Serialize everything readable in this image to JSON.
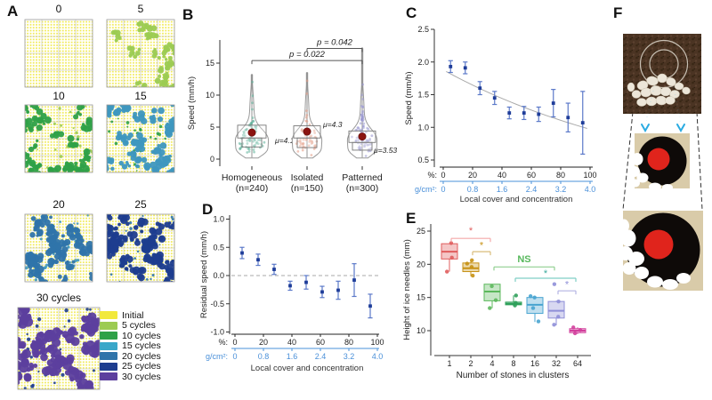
{
  "panel_labels": {
    "A": "A",
    "B": "B",
    "C": "C",
    "D": "D",
    "E": "E",
    "F": "F"
  },
  "panel_a": {
    "snapshot_titles": [
      "0",
      "5",
      "10",
      "15",
      "20",
      "25",
      "30 cycles"
    ],
    "snapshot_colors": [
      null,
      "#9ccb52",
      "#2fa148",
      "#3e97bf",
      "#2f74aa",
      "#1e3d8f",
      "#5c3f9e"
    ],
    "base_dot_color": "#f0e94b",
    "legend": [
      {
        "label": "Initial",
        "color": "#f2e93c"
      },
      {
        "label": "5 cycles",
        "color": "#9ccb52"
      },
      {
        "label": "10 cycles",
        "color": "#2fa148"
      },
      {
        "label": "15 cycles",
        "color": "#39a7c9"
      },
      {
        "label": "20 cycles",
        "color": "#2f74aa"
      },
      {
        "label": "25 cycles",
        "color": "#1e3d8f"
      },
      {
        "label": "30 cycles",
        "color": "#5c3f9e"
      }
    ]
  },
  "chart_data": [
    {
      "id": "B",
      "type": "violin",
      "ylabel": "Speed (mm/h)",
      "ylim": [
        0,
        18.5
      ],
      "yticks": [
        "0",
        "5",
        "10",
        "15"
      ],
      "ytick_vals": [
        0,
        5,
        10,
        15
      ],
      "categories": [
        {
          "label": "Homogeneous",
          "n": "(n=240)",
          "mu": 4.15,
          "mu_label": "μ=4.15",
          "color": "#5fb39a",
          "max": 13.3
        },
        {
          "label": "Isolated",
          "n": "(n=150)",
          "mu": 4.3,
          "mu_label": "μ=4.3",
          "color": "#e39a84",
          "max": 13.6
        },
        {
          "label": "Patterned",
          "n": "(n=300)",
          "mu": 3.53,
          "mu_label": "μ=3.53",
          "color": "#9a99d2",
          "max": 17.5
        }
      ],
      "comparisons": [
        {
          "from": 0,
          "to": 2,
          "label": "p = 0.022",
          "height": 15.4
        },
        {
          "from": 1,
          "to": 2,
          "label": "p = 0.042",
          "height": 17.3
        }
      ],
      "mean_dot_color": "#8b1410"
    },
    {
      "id": "C",
      "type": "scatter-errorbar",
      "ylabel": "Speed (mm/h)",
      "ylim": [
        0.5,
        2.5
      ],
      "yticks": [
        "0.5",
        "1.0",
        "1.5",
        "2.0",
        "2.5"
      ],
      "ytick_vals": [
        0.5,
        1.0,
        1.5,
        2.0,
        2.5
      ],
      "x": [
        5,
        15,
        25,
        35,
        45,
        55,
        65,
        75,
        85,
        95
      ],
      "y": [
        1.93,
        1.91,
        1.6,
        1.45,
        1.22,
        1.22,
        1.2,
        1.37,
        1.15,
        1.07
      ],
      "yerr": [
        0.09,
        0.09,
        0.1,
        0.1,
        0.09,
        0.1,
        0.11,
        0.21,
        0.22,
        0.48
      ],
      "trend": {
        "type": "exponential",
        "y0": 1.88,
        "y100": 0.97
      },
      "x_axis_rows": [
        {
          "prefix": "%:",
          "ticks": [
            "0",
            "20",
            "40",
            "60",
            "80",
            "100"
          ],
          "tick_vals": [
            0,
            20,
            40,
            60,
            80,
            100
          ],
          "color": "#222222"
        },
        {
          "prefix": "g/cm²:",
          "ticks": [
            "0",
            "0.8",
            "1.6",
            "2.4",
            "3.2",
            "4.0"
          ],
          "tick_vals": [
            0,
            20,
            40,
            60,
            80,
            100
          ],
          "color": "#4a90d9"
        }
      ],
      "xlabel": "Local cover and concentration",
      "point_color": "#1f3d99",
      "errorbar_color": "#5b79c9",
      "trend_color": "#aaaaaa"
    },
    {
      "id": "D",
      "type": "scatter-errorbar",
      "ylabel": "Residual speed (mm/h)",
      "ylim": [
        -1.0,
        1.0
      ],
      "yticks": [
        "-1.0",
        "-0.5",
        "0.0",
        "0.5",
        "1.0"
      ],
      "ytick_vals": [
        -1.0,
        -0.5,
        0.0,
        0.5,
        1.0
      ],
      "x": [
        5,
        16.25,
        27.5,
        38.75,
        50,
        61.25,
        72.5,
        83.75,
        95
      ],
      "y": [
        0.4,
        0.28,
        0.11,
        -0.18,
        -0.12,
        -0.29,
        -0.26,
        -0.08,
        -0.54
      ],
      "yerr": [
        0.1,
        0.1,
        0.09,
        0.08,
        0.12,
        0.1,
        0.16,
        0.29,
        0.21
      ],
      "zero_line": true,
      "x_axis_rows": [
        {
          "prefix": "%:",
          "ticks": [
            "0",
            "20",
            "40",
            "60",
            "80",
            "100"
          ],
          "tick_vals": [
            0,
            20,
            40,
            60,
            80,
            100
          ],
          "color": "#222222"
        },
        {
          "prefix": "g/cm²:",
          "ticks": [
            "0",
            "0.8",
            "1.6",
            "2.4",
            "3.2",
            "4.0"
          ],
          "tick_vals": [
            0,
            20,
            40,
            60,
            80,
            100
          ],
          "color": "#4a90d9"
        }
      ],
      "xlabel": "Local cover and concentration",
      "point_color": "#1f3d99",
      "errorbar_color": "#5b79c9",
      "trend_color": "#aaaaaa"
    },
    {
      "id": "E",
      "type": "box",
      "ylabel": "Height of ice needles (mm)",
      "xlabel": "Number of stones in clusters",
      "ylim": [
        8,
        26
      ],
      "yticks": [
        "10",
        "15",
        "20",
        "25"
      ],
      "ytick_vals": [
        10,
        15,
        20,
        25
      ],
      "boxes": [
        {
          "label": "1",
          "color": "#e05c5c",
          "whisker_low": 18.9,
          "q1": 20.8,
          "median": 21.9,
          "q3": 23.1,
          "whisker_high": 23.1,
          "points": [
            23.2,
            21.0,
            18.9
          ]
        },
        {
          "label": "2",
          "color": "#c79114",
          "whisker_low": 18.2,
          "q1": 18.9,
          "median": 19.4,
          "q3": 20.2,
          "whisker_high": 20.6,
          "points": [
            20.6,
            20.1,
            19.6,
            18.3
          ]
        },
        {
          "label": "4",
          "color": "#5cb85c",
          "whisker_low": 13.4,
          "q1": 14.5,
          "median": 15.9,
          "q3": 17.0,
          "whisker_high": 17.0,
          "points": [
            16.7,
            14.6,
            13.4
          ]
        },
        {
          "label": "8",
          "color": "#2fa05a",
          "whisker_low": 13.7,
          "q1": 13.9,
          "median": 14.05,
          "q3": 14.3,
          "whisker_high": 15.3,
          "points": [
            15.3,
            14.2,
            13.8
          ]
        },
        {
          "label": "16",
          "color": "#48a4d0",
          "whisker_low": 11.3,
          "q1": 12.6,
          "median": 13.9,
          "q3": 15.0,
          "whisker_high": 15.2,
          "points": [
            15.2,
            15.0,
            13.4,
            11.4
          ]
        },
        {
          "label": "32",
          "color": "#8f8fd8",
          "whisker_low": 10.8,
          "q1": 11.9,
          "median": 13.0,
          "q3": 14.4,
          "whisker_high": 14.5,
          "points": [
            17.0,
            14.4,
            12.1,
            10.9
          ]
        },
        {
          "label": "64",
          "color": "#d23f9c",
          "whisker_low": 9.5,
          "q1": 9.7,
          "median": 10.0,
          "q3": 10.3,
          "whisker_high": 10.5,
          "points": [
            10.5,
            10.1,
            9.6
          ]
        }
      ],
      "brackets": [
        {
          "from": 0,
          "to": 2,
          "height": 23.9,
          "color": "#f4a9a9",
          "mark": "*",
          "mark_color": "#e05c5c",
          "mark_height": 25.0
        },
        {
          "from": 1,
          "to": 2,
          "height": 21.9,
          "color": "#d9bc7a",
          "mark": "*",
          "mark_color": "#c79114",
          "mark_height": 22.8
        },
        {
          "from": 2,
          "to": 5,
          "height": 19.6,
          "color": "#90cf90",
          "mark": "NS",
          "mark_color": "#57b85c",
          "mark_height": 20.7
        },
        {
          "from": 3,
          "to": 6,
          "height": 17.9,
          "color": "#7fcfc5",
          "mark": "*",
          "mark_color": "#3aa99c",
          "mark_height": 18.6
        },
        {
          "from": 5,
          "to": 6,
          "height": 16.0,
          "color": "#b3b3e3",
          "mark": "*",
          "mark_color": "#8f8fd8",
          "mark_height": 16.9
        }
      ]
    }
  ],
  "panel_f": {
    "photo_bg": "#4b3423",
    "stone_color": "#ece6d9",
    "ring_color": "#ddd8cc",
    "inset_bg": "#d9cba9",
    "disk_color": "#0e0a08",
    "core_color": "#e0241c",
    "arrow_color": "#29abe2",
    "dash_color": "#333333"
  }
}
